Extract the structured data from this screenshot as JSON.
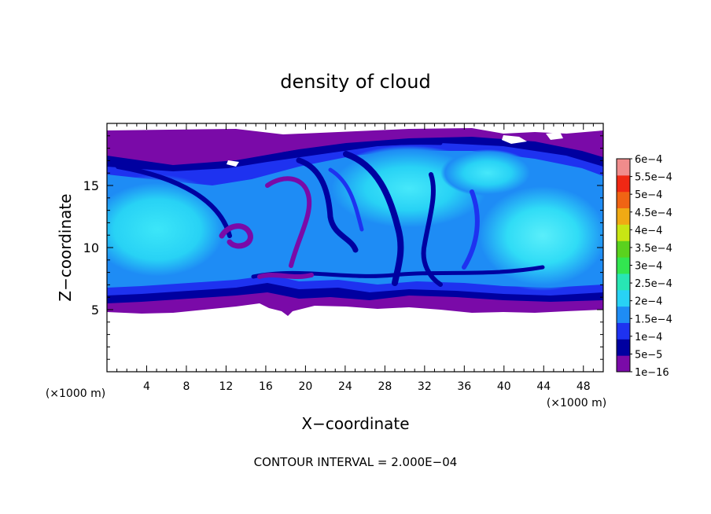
{
  "chart_data": {
    "type": "heatmap",
    "title": "density of cloud",
    "xlabel": "X−coordinate",
    "ylabel": "Z−coordinate",
    "x_unit_label": "(×1000 m)",
    "y_unit_label": "(×1000 m)",
    "xlim": [
      0,
      50
    ],
    "ylim": [
      0,
      20
    ],
    "xticks": [
      4,
      8,
      12,
      16,
      20,
      24,
      28,
      32,
      36,
      40,
      44,
      48
    ],
    "yticks": [
      5,
      10,
      15
    ],
    "cloud_base_km": 5,
    "cloud_top_km": 19.4,
    "colorbar": {
      "labels": [
        "1e−16",
        "5e−5",
        "1e−4",
        "1.5e−4",
        "2e−4",
        "2.5e−4",
        "3e−4",
        "3.5e−4",
        "4e−4",
        "4.5e−4",
        "5e−4",
        "5.5e−4",
        "6e−4"
      ],
      "colors": [
        "#7a0aa8",
        "#0000a0",
        "#1e32f0",
        "#1e8cf5",
        "#28d2f5",
        "#28e6b4",
        "#32e650",
        "#5ad21e",
        "#c8e614",
        "#f0aa14",
        "#f06414",
        "#f02814",
        "#f08c8c"
      ]
    },
    "contour_interval": "CONTOUR INTERVAL = 2.000E−04"
  }
}
